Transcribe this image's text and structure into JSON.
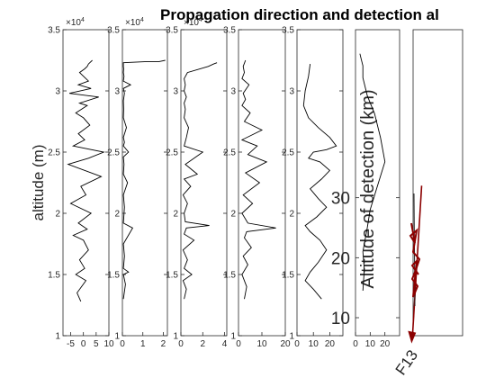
{
  "title": "Propagation direction and detection al",
  "colors": {
    "profile": "#000000",
    "arrow": "#8b0000",
    "axis": "#262626"
  },
  "chart_data": [
    {
      "type": "line",
      "id": "p1",
      "ylabel": "altitude (m)",
      "xlim": [
        -8,
        10
      ],
      "xticks": [
        "-5",
        "0",
        "5",
        "10"
      ],
      "ylim": [
        1,
        3.5
      ],
      "yticks": [
        "1",
        "1.5",
        "2",
        "2.5",
        "3",
        "3.5"
      ],
      "exponent": "4",
      "x": [
        -1.0,
        -2.5,
        1.0,
        -3.0,
        0.5,
        -1.5,
        2.0,
        0.0,
        -4.0,
        1.5,
        -2.0,
        3.0,
        -5.0,
        1.0,
        -1.0,
        7.0,
        -6.0,
        2.0,
        8.0,
        -4.0,
        0.5,
        -2.0,
        2.5,
        0.0,
        -3.0,
        1.5,
        -1.5,
        6.0,
        -5.5,
        3.0,
        -2.0,
        2.0,
        0.0,
        -1.5,
        0.5,
        1.5,
        2.0,
        3.5
      ],
      "y": [
        1.28,
        1.35,
        1.45,
        1.5,
        1.55,
        1.62,
        1.7,
        1.78,
        1.82,
        1.87,
        1.92,
        2.0,
        2.08,
        2.15,
        2.22,
        2.3,
        2.4,
        2.45,
        2.5,
        2.55,
        2.6,
        2.65,
        2.72,
        2.78,
        2.82,
        2.88,
        2.9,
        2.95,
        2.98,
        3.02,
        3.05,
        3.08,
        3.12,
        3.15,
        3.18,
        3.2,
        3.22,
        3.25
      ]
    },
    {
      "type": "line",
      "id": "p2",
      "xlim": [
        0,
        2.2
      ],
      "xticks": [
        "0",
        "1",
        "2"
      ],
      "ylim": [
        1,
        3.5
      ],
      "yticks": [
        "1",
        "1.5",
        "2",
        "2.5",
        "3",
        "3.5"
      ],
      "exponent": "4",
      "x": [
        0.05,
        0.15,
        0.05,
        0.3,
        0.05,
        0.1,
        0.05,
        0.5,
        0.05,
        0.1,
        0.05,
        0.25,
        0.05,
        0.08,
        0.05,
        0.3,
        0.05,
        0.1,
        0.05,
        0.2,
        0.05,
        0.06,
        0.05,
        0.1,
        0.05,
        0.4,
        0.05,
        0.08,
        0.05,
        0.06,
        0.05,
        0.05,
        0.05,
        1.2,
        1.8,
        2.1
      ],
      "y": [
        1.3,
        1.42,
        1.5,
        1.52,
        1.55,
        1.65,
        1.75,
        1.88,
        1.92,
        2.05,
        2.15,
        2.25,
        2.32,
        2.4,
        2.46,
        2.5,
        2.55,
        2.58,
        2.62,
        2.7,
        2.78,
        2.85,
        2.92,
        2.98,
        3.02,
        3.05,
        3.08,
        3.12,
        3.15,
        3.18,
        3.2,
        3.22,
        3.23,
        3.24,
        3.24,
        3.25
      ]
    },
    {
      "type": "line",
      "id": "p3",
      "xlim": [
        0,
        4.2
      ],
      "xticks": [
        "0",
        "2",
        "4"
      ],
      "ylim": [
        1,
        3.5
      ],
      "yticks": [
        "1",
        "1.5",
        "2",
        "2.5",
        "3",
        "3.5"
      ],
      "exponent": "4",
      "x": [
        0.3,
        0.5,
        0.2,
        1.0,
        0.3,
        0.6,
        0.2,
        1.2,
        0.3,
        0.5,
        2.6,
        0.4,
        0.3,
        0.6,
        0.2,
        0.9,
        0.3,
        1.5,
        0.4,
        2.0,
        0.3,
        0.5,
        0.7,
        0.3,
        0.4,
        0.3,
        0.5,
        0.3,
        0.4,
        0.3,
        0.6,
        2.5,
        3.0,
        3.3
      ],
      "y": [
        1.3,
        1.38,
        1.45,
        1.5,
        1.55,
        1.62,
        1.7,
        1.78,
        1.83,
        1.88,
        1.9,
        1.93,
        2.0,
        2.08,
        2.15,
        2.22,
        2.28,
        2.32,
        2.4,
        2.5,
        2.55,
        2.62,
        2.7,
        2.78,
        2.85,
        2.9,
        2.95,
        3.0,
        3.05,
        3.1,
        3.15,
        3.2,
        3.22,
        3.23
      ]
    },
    {
      "type": "line",
      "id": "p4",
      "xlim": [
        0,
        20
      ],
      "xticks": [
        "0",
        "10",
        "20"
      ],
      "ylim": [
        1,
        3.5
      ],
      "yticks": [
        "1",
        "1.5",
        "2",
        "2.5",
        "3",
        "3.5"
      ],
      "x": [
        2.5,
        3.5,
        1.5,
        4.0,
        2.0,
        5.5,
        2.5,
        3.5,
        16.0,
        4.0,
        1.5,
        6.0,
        2.0,
        9.0,
        3.0,
        12.0,
        4.0,
        8.0,
        1.5,
        10.0,
        2.5,
        5.0,
        1.5,
        3.0,
        2.0,
        4.5,
        1.5,
        2.5,
        2.0,
        3.0
      ],
      "y": [
        1.3,
        1.4,
        1.5,
        1.58,
        1.65,
        1.72,
        1.8,
        1.85,
        1.88,
        1.92,
        2.0,
        2.08,
        2.15,
        2.25,
        2.33,
        2.42,
        2.48,
        2.55,
        2.6,
        2.68,
        2.75,
        2.82,
        2.88,
        2.93,
        2.98,
        3.05,
        3.1,
        3.15,
        3.2,
        3.25
      ]
    },
    {
      "type": "line",
      "id": "p5",
      "xlim": [
        0,
        28
      ],
      "xticks": [
        "0",
        "10",
        "20"
      ],
      "ylim": [
        1,
        3.5
      ],
      "yticks": [
        "1",
        "1.5",
        "2",
        "2.5",
        "3",
        "3.5"
      ],
      "x": [
        15.0,
        10.0,
        5.0,
        8.0,
        13.0,
        18.0,
        14.0,
        8.0,
        5.0,
        12.0,
        18.0,
        13.0,
        8.0,
        15.0,
        20.0,
        14.0,
        7.0,
        10.0,
        18.0,
        24.0,
        20.0,
        13.0,
        7.0,
        4.0,
        5.0,
        7.0,
        8.0
      ],
      "y": [
        1.3,
        1.38,
        1.45,
        1.52,
        1.6,
        1.7,
        1.78,
        1.85,
        1.9,
        1.97,
        2.05,
        2.12,
        2.2,
        2.28,
        2.35,
        2.42,
        2.45,
        2.5,
        2.52,
        2.55,
        2.62,
        2.7,
        2.78,
        2.88,
        3.0,
        3.12,
        3.22
      ]
    },
    {
      "type": "line",
      "id": "p6",
      "xlim": [
        0,
        30
      ],
      "xticks": [
        "0",
        "10",
        "20"
      ],
      "ylabel": "Altitude of detection (km)",
      "ylim": [
        7,
        58
      ],
      "yticks": [
        "10",
        "20",
        "30"
      ],
      "x": [
        5.0,
        6.0,
        5.0,
        8.0,
        10.0,
        15.0,
        20.0,
        17.0,
        13.0,
        8.0,
        5.0,
        5.0,
        4.0,
        3.0
      ],
      "y": [
        14.5,
        18.0,
        21.0,
        25.0,
        28.0,
        32.0,
        36.0,
        40.0,
        44.0,
        47.0,
        50.0,
        52.0,
        53.0,
        54.0
      ]
    }
  ],
  "propagation": {
    "station": "F13",
    "arrow": {
      "from": [
        0.5,
        32
      ],
      "to": [
        -0.6,
        6
      ]
    }
  }
}
